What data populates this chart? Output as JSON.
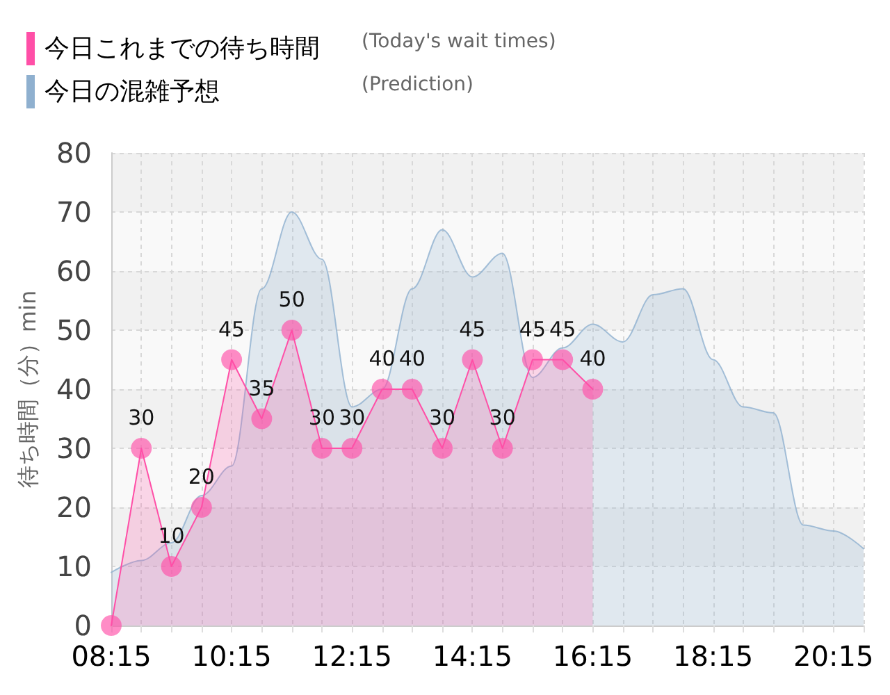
{
  "chart_data": {
    "type": "area",
    "ylabel": "待ち時間（分）min",
    "legend": "top left",
    "grid": true,
    "annotations": [
      "(Today's wait times)",
      "(Prediction)"
    ],
    "xlim": [
      8.25,
      20.75
    ],
    "xticks": [
      {
        "value": 8.25,
        "label": "08:15"
      },
      {
        "value": 8.75,
        "label": null
      },
      {
        "value": 9.25,
        "label": null
      },
      {
        "value": 9.75,
        "label": null
      },
      {
        "value": 10.25,
        "label": "10:15"
      },
      {
        "value": 10.75,
        "label": null
      },
      {
        "value": 11.25,
        "label": null
      },
      {
        "value": 11.75,
        "label": null
      },
      {
        "value": 12.25,
        "label": "12:15"
      },
      {
        "value": 12.75,
        "label": null
      },
      {
        "value": 13.25,
        "label": null
      },
      {
        "value": 13.75,
        "label": null
      },
      {
        "value": 14.25,
        "label": "14:15"
      },
      {
        "value": 14.75,
        "label": null
      },
      {
        "value": 15.25,
        "label": null
      },
      {
        "value": 15.75,
        "label": null
      },
      {
        "value": 16.25,
        "label": "16:15"
      },
      {
        "value": 16.75,
        "label": null
      },
      {
        "value": 17.25,
        "label": null
      },
      {
        "value": 17.75,
        "label": null
      },
      {
        "value": 18.25,
        "label": "18:15"
      },
      {
        "value": 18.75,
        "label": null
      },
      {
        "value": 19.25,
        "label": null
      },
      {
        "value": 19.75,
        "label": null
      },
      {
        "value": 20.25,
        "label": "20:15"
      },
      {
        "value": 20.75,
        "label": null
      }
    ],
    "ylim": [
      0,
      80
    ],
    "yticks": [
      0,
      10,
      20,
      30,
      40,
      50,
      60,
      70,
      80
    ],
    "series": [
      {
        "name": "今日これまでの待ち時間",
        "color": "#ff4fa7",
        "marker": "circle",
        "x": [
          8.25,
          8.75,
          9.25,
          9.75,
          10.25,
          10.75,
          11.25,
          11.75,
          12.25,
          12.75,
          13.25,
          13.75,
          14.25,
          14.75,
          15.25,
          15.75,
          16.25
        ],
        "values": [
          0,
          30,
          10,
          20,
          45,
          35,
          50,
          30,
          30,
          40,
          40,
          30,
          45,
          30,
          45,
          45,
          40
        ],
        "value_labels": [
          null,
          "30",
          "10",
          "20",
          "45",
          "35",
          "50",
          "30",
          "30",
          "40",
          "40",
          "30",
          "45",
          "30",
          "45",
          "45",
          "40"
        ]
      },
      {
        "name": "今日の混雑予想",
        "color": "#8fb0cf",
        "marker": "none",
        "x": [
          8.25,
          8.75,
          9.25,
          9.75,
          10.25,
          10.75,
          11.25,
          11.75,
          12.25,
          12.75,
          13.25,
          13.75,
          14.25,
          14.75,
          15.25,
          15.75,
          16.25,
          16.75,
          17.25,
          17.75,
          18.25,
          18.75,
          19.25,
          19.75,
          20.25,
          20.75
        ],
        "values": [
          9,
          11,
          14,
          22,
          27,
          57,
          70,
          62,
          37,
          40,
          57,
          67,
          59,
          63,
          42,
          47,
          51,
          48,
          56,
          57,
          45,
          37,
          36,
          17,
          16,
          13
        ]
      }
    ]
  }
}
